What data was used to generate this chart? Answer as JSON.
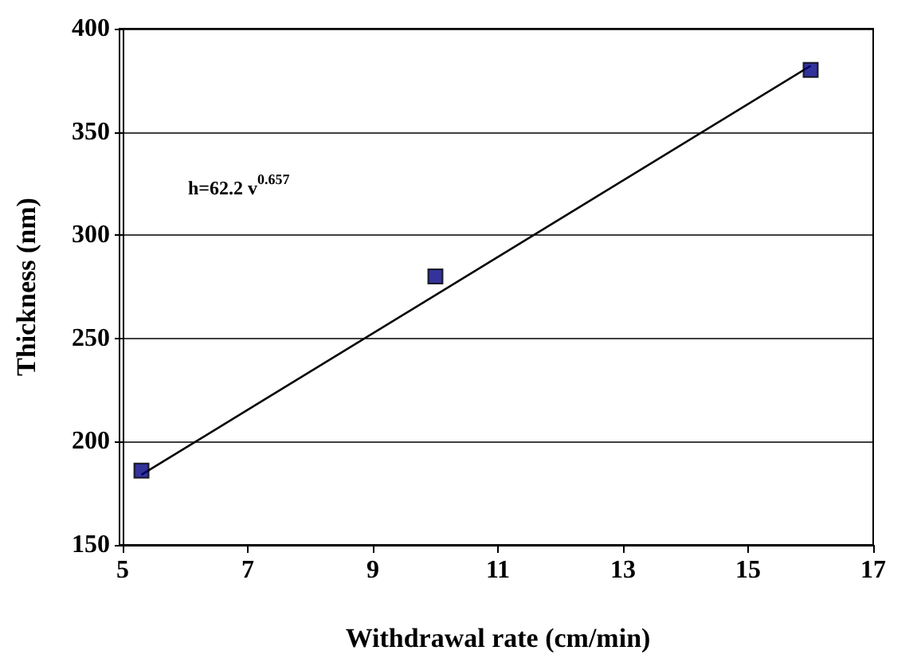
{
  "chart_data": {
    "type": "scatter",
    "xlabel": "Withdrawal rate (cm/min)",
    "ylabel": "Thickness (nm)",
    "x": [
      5.3,
      10,
      16
    ],
    "series": [
      {
        "color": "#000080",
        "marker": "square",
        "values": [
          186,
          280,
          380
        ]
      },
      {
        "type": "line",
        "color": "#000000",
        "marker": "none",
        "line_style": "solid",
        "x": [
          5.3,
          16
        ],
        "values": [
          184,
          382
        ]
      }
    ],
    "xlim": [
      5,
      17
    ],
    "xticks": [
      5,
      7,
      9,
      11,
      13,
      15,
      17
    ],
    "ylim": [
      150,
      400
    ],
    "yticks": [
      150,
      200,
      250,
      300,
      350,
      400
    ],
    "grid": "y",
    "annotations": [
      "h=62.2 v$^{0.657}$"
    ]
  }
}
